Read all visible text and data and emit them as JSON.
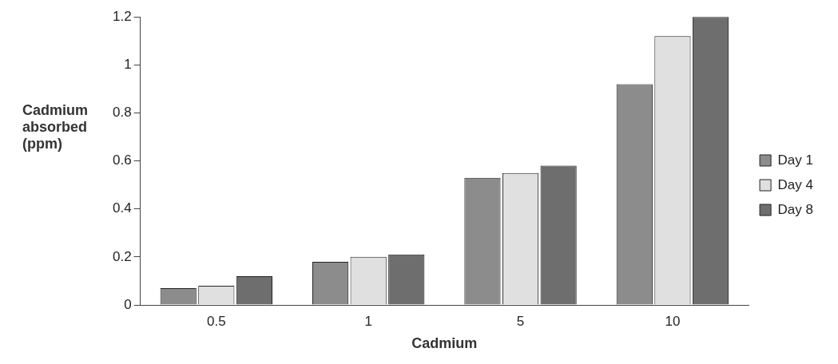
{
  "chart_data": {
    "type": "bar",
    "xlabel": "Cadmium",
    "ylabel": "Cadmium absorbed (ppm)",
    "categories": [
      "0.5",
      "1",
      "5",
      "10"
    ],
    "series": [
      {
        "name": "Day 1",
        "color": "#8c8c8c",
        "values": [
          0.07,
          0.18,
          0.53,
          0.92
        ]
      },
      {
        "name": "Day 4",
        "color": "#e0e0e0",
        "values": [
          0.08,
          0.2,
          0.55,
          1.12
        ]
      },
      {
        "name": "Day 8",
        "color": "#6e6e6e",
        "values": [
          0.12,
          0.21,
          0.58,
          1.2
        ]
      }
    ],
    "ylim": [
      0,
      1.2
    ],
    "yticks": [
      0,
      0.2,
      0.4,
      0.6,
      0.8,
      1,
      1.2
    ],
    "grid": false,
    "legend": "right"
  }
}
